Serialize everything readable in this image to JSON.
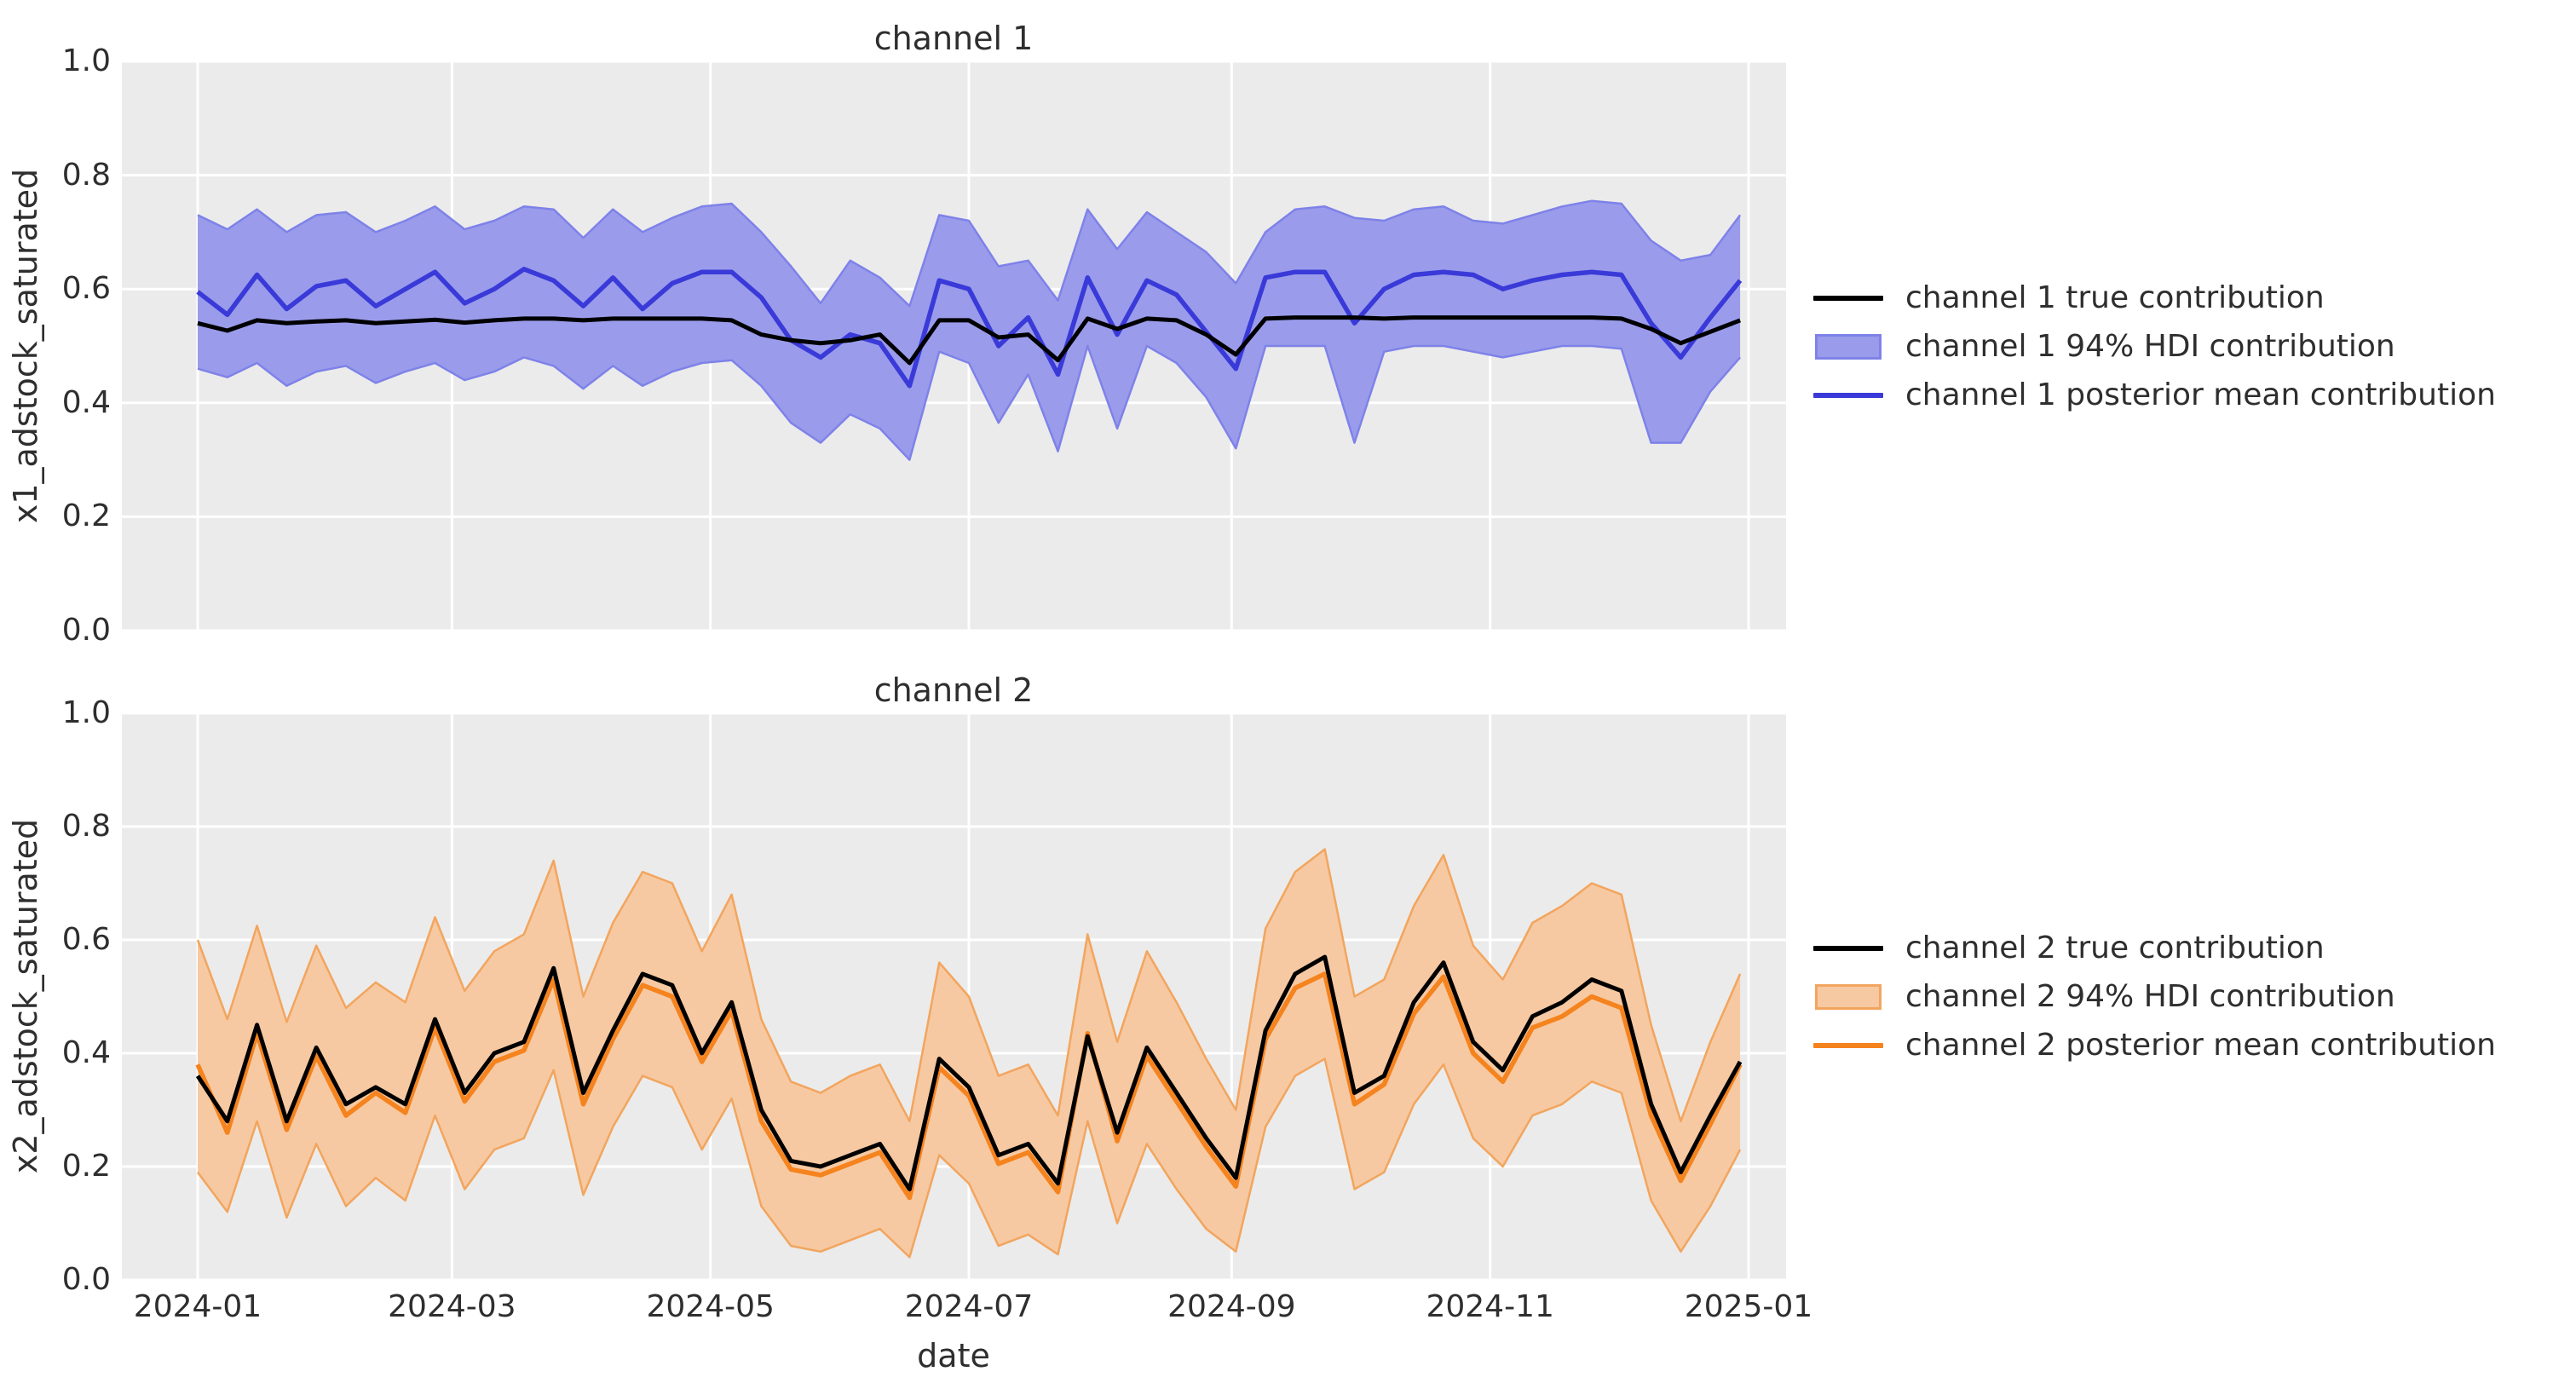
{
  "figure": {
    "background": "#ffffff",
    "axes_background": "#ebebeb",
    "grid_color": "#ffffff",
    "text_color": "#2e2e2e"
  },
  "x_axis": {
    "label": "date",
    "tick_labels": [
      "2024-01",
      "2024-03",
      "2024-05",
      "2024-07",
      "2024-09",
      "2024-11",
      "2025-01"
    ]
  },
  "y_axis": {
    "tick_labels": [
      "0.0",
      "0.2",
      "0.4",
      "0.6",
      "0.8",
      "1.0"
    ]
  },
  "chart_data": [
    {
      "type": "line",
      "title": "channel 1",
      "xlabel": "date",
      "ylabel": "x1_adstock_saturated",
      "ylim": [
        0.0,
        1.0
      ],
      "grid": true,
      "legend_position": "right",
      "x_frequency": "weekly",
      "dates": [
        "2024-01-01",
        "2024-01-08",
        "2024-01-15",
        "2024-01-22",
        "2024-01-29",
        "2024-02-05",
        "2024-02-12",
        "2024-02-19",
        "2024-02-26",
        "2024-03-04",
        "2024-03-11",
        "2024-03-18",
        "2024-03-25",
        "2024-04-01",
        "2024-04-08",
        "2024-04-15",
        "2024-04-22",
        "2024-04-29",
        "2024-05-06",
        "2024-05-13",
        "2024-05-20",
        "2024-05-27",
        "2024-06-03",
        "2024-06-10",
        "2024-06-17",
        "2024-06-24",
        "2024-07-01",
        "2024-07-08",
        "2024-07-15",
        "2024-07-22",
        "2024-07-29",
        "2024-08-05",
        "2024-08-12",
        "2024-08-19",
        "2024-08-26",
        "2024-09-02",
        "2024-09-09",
        "2024-09-16",
        "2024-09-23",
        "2024-09-30",
        "2024-10-07",
        "2024-10-14",
        "2024-10-21",
        "2024-10-28",
        "2024-11-04",
        "2024-11-11",
        "2024-11-18",
        "2024-11-25",
        "2024-12-02",
        "2024-12-09",
        "2024-12-16",
        "2024-12-23",
        "2024-12-30"
      ],
      "series": [
        {
          "name": "channel 1 true contribution",
          "values": [
            0.54,
            0.527,
            0.545,
            0.54,
            0.543,
            0.545,
            0.54,
            0.543,
            0.546,
            0.541,
            0.545,
            0.548,
            0.548,
            0.545,
            0.548,
            0.548,
            0.548,
            0.548,
            0.545,
            0.52,
            0.51,
            0.505,
            0.51,
            0.52,
            0.47,
            0.545,
            0.545,
            0.515,
            0.52,
            0.475,
            0.548,
            0.53,
            0.548,
            0.545,
            0.52,
            0.485,
            0.548,
            0.55,
            0.55,
            0.55,
            0.548,
            0.55,
            0.55,
            0.55,
            0.55,
            0.55,
            0.55,
            0.55,
            0.548,
            0.53,
            0.505,
            0.525,
            0.545
          ]
        },
        {
          "name": "channel 1 posterior mean contribution",
          "values": [
            0.595,
            0.555,
            0.625,
            0.565,
            0.605,
            0.615,
            0.57,
            0.6,
            0.63,
            0.575,
            0.6,
            0.635,
            0.615,
            0.57,
            0.62,
            0.565,
            0.61,
            0.63,
            0.63,
            0.585,
            0.51,
            0.48,
            0.52,
            0.505,
            0.43,
            0.615,
            0.6,
            0.5,
            0.55,
            0.45,
            0.62,
            0.52,
            0.615,
            0.59,
            0.525,
            0.46,
            0.62,
            0.63,
            0.63,
            0.54,
            0.6,
            0.625,
            0.63,
            0.625,
            0.6,
            0.615,
            0.625,
            0.63,
            0.625,
            0.54,
            0.48,
            0.55,
            0.615
          ]
        }
      ],
      "band": {
        "name": "channel 1 94% HDI contribution",
        "low": [
          0.46,
          0.445,
          0.47,
          0.43,
          0.455,
          0.465,
          0.435,
          0.455,
          0.47,
          0.44,
          0.455,
          0.48,
          0.465,
          0.425,
          0.465,
          0.43,
          0.455,
          0.47,
          0.475,
          0.43,
          0.365,
          0.33,
          0.38,
          0.355,
          0.3,
          0.49,
          0.47,
          0.365,
          0.45,
          0.315,
          0.5,
          0.355,
          0.5,
          0.47,
          0.41,
          0.32,
          0.5,
          0.5,
          0.5,
          0.33,
          0.49,
          0.5,
          0.5,
          0.49,
          0.48,
          0.49,
          0.5,
          0.5,
          0.495,
          0.33,
          0.33,
          0.42,
          0.48
        ],
        "high": [
          0.73,
          0.705,
          0.74,
          0.7,
          0.73,
          0.735,
          0.7,
          0.72,
          0.745,
          0.705,
          0.72,
          0.745,
          0.74,
          0.69,
          0.74,
          0.7,
          0.725,
          0.745,
          0.75,
          0.7,
          0.64,
          0.575,
          0.65,
          0.62,
          0.57,
          0.73,
          0.72,
          0.64,
          0.65,
          0.58,
          0.74,
          0.67,
          0.735,
          0.7,
          0.665,
          0.61,
          0.7,
          0.74,
          0.745,
          0.725,
          0.72,
          0.74,
          0.745,
          0.72,
          0.715,
          0.73,
          0.745,
          0.755,
          0.75,
          0.685,
          0.65,
          0.66,
          0.73
        ]
      },
      "colors": {
        "true_line": "#000000",
        "mean_line": "#3a3ad9",
        "band_fill": "#9a9ceb",
        "band_edge": "#7e82e8"
      },
      "legend": [
        {
          "type": "line",
          "color": "#000000",
          "label": "channel 1 true contribution"
        },
        {
          "type": "patch",
          "fill": "#9a9ceb",
          "edge": "#7e82e8",
          "label": "channel 1 94% HDI contribution"
        },
        {
          "type": "line",
          "color": "#3a3ad9",
          "label": "channel 1 posterior mean contribution"
        }
      ]
    },
    {
      "type": "line",
      "title": "channel 2",
      "xlabel": "date",
      "ylabel": "x2_adstock_saturated",
      "ylim": [
        0.0,
        1.0
      ],
      "grid": true,
      "legend_position": "right",
      "x_frequency": "weekly",
      "dates": [
        "2024-01-01",
        "2024-01-08",
        "2024-01-15",
        "2024-01-22",
        "2024-01-29",
        "2024-02-05",
        "2024-02-12",
        "2024-02-19",
        "2024-02-26",
        "2024-03-04",
        "2024-03-11",
        "2024-03-18",
        "2024-03-25",
        "2024-04-01",
        "2024-04-08",
        "2024-04-15",
        "2024-04-22",
        "2024-04-29",
        "2024-05-06",
        "2024-05-13",
        "2024-05-20",
        "2024-05-27",
        "2024-06-03",
        "2024-06-10",
        "2024-06-17",
        "2024-06-24",
        "2024-07-01",
        "2024-07-08",
        "2024-07-15",
        "2024-07-22",
        "2024-07-29",
        "2024-08-05",
        "2024-08-12",
        "2024-08-19",
        "2024-08-26",
        "2024-09-02",
        "2024-09-09",
        "2024-09-16",
        "2024-09-23",
        "2024-09-30",
        "2024-10-07",
        "2024-10-14",
        "2024-10-21",
        "2024-10-28",
        "2024-11-04",
        "2024-11-11",
        "2024-11-18",
        "2024-11-25",
        "2024-12-02",
        "2024-12-09",
        "2024-12-16",
        "2024-12-23",
        "2024-12-30"
      ],
      "series": [
        {
          "name": "channel 2 true contribution",
          "values": [
            0.36,
            0.28,
            0.45,
            0.28,
            0.41,
            0.31,
            0.34,
            0.31,
            0.46,
            0.33,
            0.4,
            0.42,
            0.55,
            0.33,
            0.44,
            0.54,
            0.52,
            0.4,
            0.49,
            0.3,
            0.21,
            0.2,
            0.22,
            0.24,
            0.16,
            0.39,
            0.34,
            0.22,
            0.24,
            0.17,
            0.43,
            0.26,
            0.41,
            0.33,
            0.25,
            0.18,
            0.44,
            0.54,
            0.57,
            0.33,
            0.36,
            0.49,
            0.56,
            0.42,
            0.37,
            0.465,
            0.49,
            0.53,
            0.51,
            0.31,
            0.19,
            0.29,
            0.385
          ]
        },
        {
          "name": "channel 2 posterior mean contribution",
          "values": [
            0.38,
            0.26,
            0.435,
            0.265,
            0.395,
            0.29,
            0.33,
            0.295,
            0.445,
            0.315,
            0.385,
            0.405,
            0.53,
            0.31,
            0.425,
            0.52,
            0.5,
            0.385,
            0.475,
            0.28,
            0.195,
            0.185,
            0.205,
            0.225,
            0.145,
            0.375,
            0.325,
            0.205,
            0.225,
            0.155,
            0.435,
            0.245,
            0.395,
            0.315,
            0.235,
            0.165,
            0.425,
            0.515,
            0.54,
            0.31,
            0.345,
            0.47,
            0.535,
            0.4,
            0.35,
            0.445,
            0.465,
            0.5,
            0.48,
            0.29,
            0.175,
            0.275,
            0.38
          ]
        }
      ],
      "band": {
        "name": "channel 2 94% HDI contribution",
        "low": [
          0.19,
          0.12,
          0.28,
          0.11,
          0.24,
          0.13,
          0.18,
          0.14,
          0.29,
          0.16,
          0.23,
          0.25,
          0.37,
          0.15,
          0.27,
          0.36,
          0.34,
          0.23,
          0.32,
          0.13,
          0.06,
          0.05,
          0.07,
          0.09,
          0.04,
          0.22,
          0.17,
          0.06,
          0.08,
          0.045,
          0.28,
          0.1,
          0.24,
          0.16,
          0.09,
          0.05,
          0.27,
          0.36,
          0.39,
          0.16,
          0.19,
          0.31,
          0.38,
          0.25,
          0.2,
          0.29,
          0.31,
          0.35,
          0.33,
          0.14,
          0.05,
          0.13,
          0.23
        ],
        "high": [
          0.6,
          0.46,
          0.625,
          0.455,
          0.59,
          0.48,
          0.525,
          0.49,
          0.64,
          0.51,
          0.58,
          0.61,
          0.74,
          0.5,
          0.63,
          0.72,
          0.7,
          0.58,
          0.68,
          0.46,
          0.35,
          0.33,
          0.36,
          0.38,
          0.28,
          0.56,
          0.5,
          0.36,
          0.38,
          0.29,
          0.61,
          0.42,
          0.58,
          0.49,
          0.39,
          0.3,
          0.62,
          0.72,
          0.76,
          0.5,
          0.53,
          0.66,
          0.75,
          0.59,
          0.53,
          0.63,
          0.66,
          0.7,
          0.68,
          0.45,
          0.28,
          0.42,
          0.54
        ]
      },
      "colors": {
        "true_line": "#000000",
        "mean_line": "#f5831e",
        "band_fill": "#f6c9a2",
        "band_edge": "#f2a55e"
      },
      "legend": [
        {
          "type": "line",
          "color": "#000000",
          "label": "channel 2 true contribution"
        },
        {
          "type": "patch",
          "fill": "#f6c9a2",
          "edge": "#f2a55e",
          "label": "channel 2 94% HDI contribution"
        },
        {
          "type": "line",
          "color": "#f5831e",
          "label": "channel 2 posterior mean contribution"
        }
      ]
    }
  ]
}
